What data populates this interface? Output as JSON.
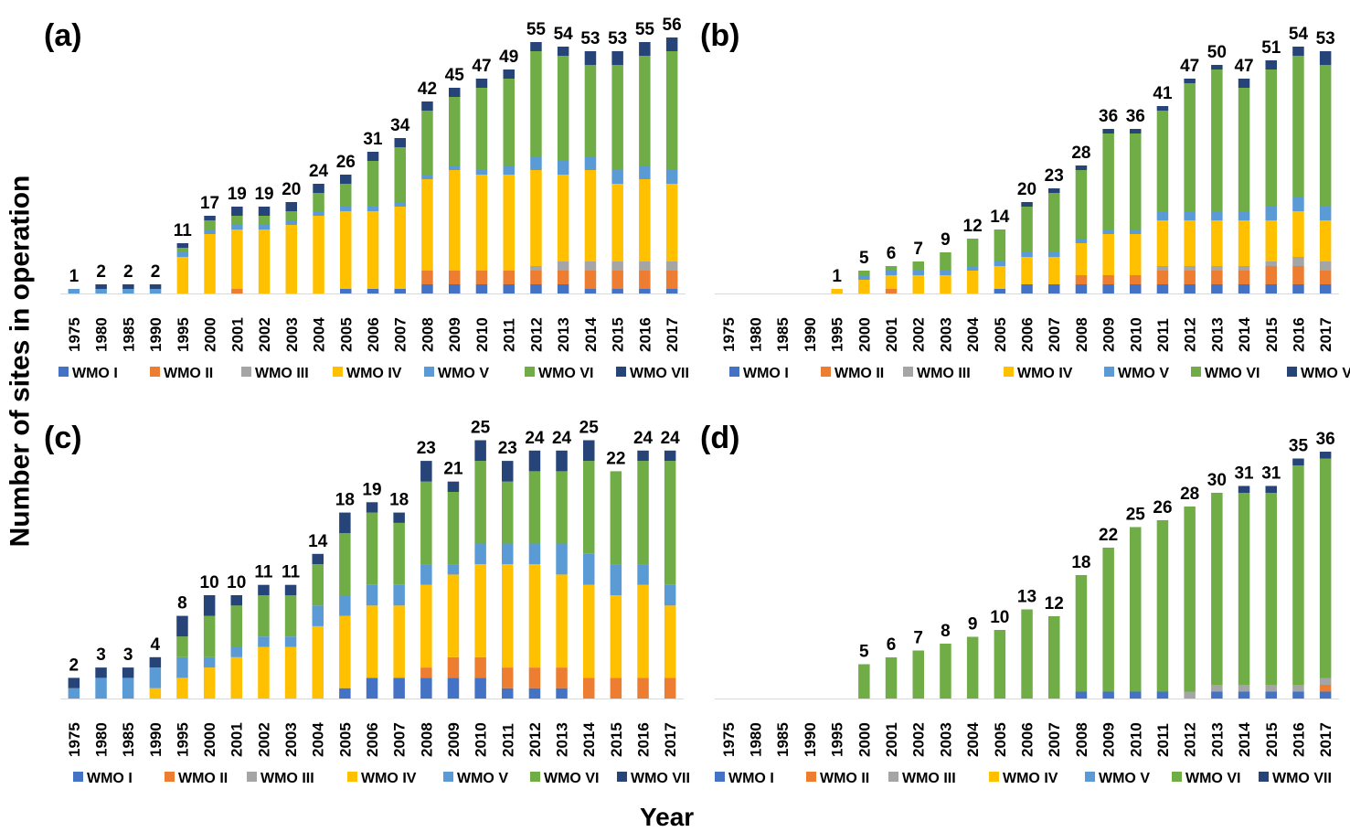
{
  "figure": {
    "ylabel": "Number of sites in operation",
    "xlabel": "Year"
  },
  "legend": {
    "items": [
      {
        "name": "WMO I",
        "color": "#4472C4"
      },
      {
        "name": "WMO II",
        "color": "#ED7D31"
      },
      {
        "name": "WMO III",
        "color": "#A5A5A5"
      },
      {
        "name": "WMO IV",
        "color": "#FFC000"
      },
      {
        "name": "WMO V",
        "color": "#5B9BD5"
      },
      {
        "name": "WMO VI",
        "color": "#70AD47"
      },
      {
        "name": "WMO VII",
        "color": "#264478"
      }
    ],
    "placement": "bottom"
  },
  "chart_data": [
    {
      "type": "bar",
      "stacked": true,
      "panel_label": "(a)",
      "categories": [
        "1975",
        "1980",
        "1985",
        "1990",
        "1995",
        "2000",
        "2001",
        "2002",
        "2003",
        "2004",
        "2005",
        "2006",
        "2007",
        "2008",
        "2009",
        "2010",
        "2011",
        "2012",
        "2013",
        "2014",
        "2015",
        "2016",
        "2017"
      ],
      "totals": [
        1,
        2,
        2,
        2,
        11,
        17,
        19,
        19,
        20,
        24,
        26,
        31,
        34,
        42,
        45,
        47,
        49,
        55,
        54,
        53,
        53,
        55,
        56
      ],
      "series": [
        {
          "name": "WMO I",
          "values": [
            0,
            0,
            0,
            0,
            0,
            0,
            0,
            0,
            0,
            0,
            1,
            1,
            1,
            2,
            2,
            2,
            2,
            2,
            2,
            1,
            1,
            1,
            1
          ]
        },
        {
          "name": "WMO II",
          "values": [
            0,
            0,
            0,
            0,
            0,
            0,
            1,
            0,
            0,
            0,
            0,
            0,
            0,
            3,
            3,
            3,
            3,
            3,
            3,
            4,
            4,
            4,
            4
          ]
        },
        {
          "name": "WMO III",
          "values": [
            0,
            0,
            0,
            0,
            0,
            0,
            0,
            0,
            0,
            0,
            0,
            0,
            0,
            0,
            0,
            0,
            0,
            1,
            2,
            2,
            2,
            2,
            2
          ]
        },
        {
          "name": "WMO IV",
          "values": [
            0,
            0,
            0,
            0,
            8,
            13,
            13,
            14,
            15,
            17,
            17,
            17,
            18,
            20,
            22,
            21,
            21,
            21,
            19,
            20,
            17,
            18,
            17
          ]
        },
        {
          "name": "WMO V",
          "values": [
            1,
            1,
            1,
            1,
            1,
            1,
            1,
            1,
            1,
            1,
            1,
            1,
            1,
            1,
            1,
            1,
            2,
            3,
            3,
            3,
            3,
            3,
            3
          ]
        },
        {
          "name": "WMO VI",
          "values": [
            0,
            0,
            0,
            0,
            1,
            2,
            2,
            2,
            2,
            4,
            5,
            10,
            12,
            14,
            15,
            18,
            19,
            23,
            23,
            20,
            23,
            24,
            26
          ]
        },
        {
          "name": "WMO VII",
          "values": [
            0,
            1,
            1,
            1,
            1,
            1,
            2,
            2,
            2,
            2,
            2,
            2,
            2,
            2,
            2,
            2,
            2,
            2,
            2,
            3,
            3,
            3,
            3
          ]
        }
      ],
      "ylim": [
        0,
        60
      ],
      "grid": false
    },
    {
      "type": "bar",
      "stacked": true,
      "panel_label": "(b)",
      "categories": [
        "1975",
        "1980",
        "1985",
        "1990",
        "1995",
        "2000",
        "2001",
        "2002",
        "2003",
        "2004",
        "2005",
        "2006",
        "2007",
        "2008",
        "2009",
        "2010",
        "2011",
        "2012",
        "2013",
        "2014",
        "2015",
        "2016",
        "2017"
      ],
      "totals": [
        null,
        null,
        null,
        null,
        1,
        5,
        6,
        7,
        9,
        12,
        14,
        20,
        23,
        28,
        36,
        36,
        41,
        47,
        50,
        47,
        51,
        54,
        53
      ],
      "series": [
        {
          "name": "WMO I",
          "values": [
            0,
            0,
            0,
            0,
            0,
            0,
            0,
            0,
            0,
            0,
            1,
            2,
            2,
            2,
            2,
            2,
            2,
            2,
            2,
            2,
            2,
            2,
            2
          ]
        },
        {
          "name": "WMO II",
          "values": [
            0,
            0,
            0,
            0,
            0,
            0,
            1,
            0,
            0,
            0,
            0,
            0,
            0,
            2,
            2,
            2,
            3,
            3,
            3,
            3,
            4,
            4,
            3
          ]
        },
        {
          "name": "WMO III",
          "values": [
            0,
            0,
            0,
            0,
            0,
            0,
            0,
            0,
            0,
            0,
            0,
            0,
            0,
            0,
            0,
            0,
            1,
            1,
            1,
            1,
            1,
            2,
            2
          ]
        },
        {
          "name": "WMO IV",
          "values": [
            0,
            0,
            0,
            0,
            1,
            3,
            3,
            4,
            4,
            5,
            5,
            6,
            6,
            7,
            9,
            9,
            10,
            10,
            10,
            10,
            9,
            10,
            9
          ]
        },
        {
          "name": "WMO V",
          "values": [
            0,
            0,
            0,
            0,
            0,
            1,
            1,
            1,
            1,
            1,
            1,
            1,
            1,
            1,
            1,
            1,
            2,
            2,
            2,
            2,
            3,
            3,
            3
          ]
        },
        {
          "name": "WMO VI",
          "values": [
            0,
            0,
            0,
            0,
            0,
            1,
            1,
            2,
            4,
            6,
            7,
            10,
            13,
            15,
            21,
            21,
            22,
            28,
            31,
            27,
            30,
            31,
            31
          ]
        },
        {
          "name": "WMO VII",
          "values": [
            0,
            0,
            0,
            0,
            0,
            0,
            0,
            0,
            0,
            0,
            0,
            1,
            1,
            1,
            1,
            1,
            1,
            1,
            1,
            2,
            2,
            2,
            3
          ]
        }
      ],
      "ylim": [
        0,
        60
      ],
      "grid": false
    },
    {
      "type": "bar",
      "stacked": true,
      "panel_label": "(c)",
      "categories": [
        "1975",
        "1980",
        "1985",
        "1990",
        "1995",
        "2000",
        "2001",
        "2002",
        "2003",
        "2004",
        "2005",
        "2006",
        "2007",
        "2008",
        "2009",
        "2010",
        "2011",
        "2012",
        "2013",
        "2014",
        "2015",
        "2016",
        "2017"
      ],
      "totals": [
        2,
        3,
        3,
        4,
        8,
        10,
        10,
        11,
        11,
        14,
        18,
        19,
        18,
        23,
        21,
        25,
        23,
        24,
        24,
        25,
        22,
        24,
        24
      ],
      "series": [
        {
          "name": "WMO I",
          "values": [
            0,
            0,
            0,
            0,
            0,
            0,
            0,
            0,
            0,
            0,
            1,
            2,
            2,
            2,
            2,
            2,
            1,
            1,
            1,
            0,
            0,
            0,
            0
          ]
        },
        {
          "name": "WMO II",
          "values": [
            0,
            0,
            0,
            0,
            0,
            0,
            0,
            0,
            0,
            0,
            0,
            0,
            0,
            1,
            2,
            2,
            2,
            2,
            2,
            2,
            2,
            2,
            2
          ]
        },
        {
          "name": "WMO III",
          "values": [
            0,
            0,
            0,
            0,
            0,
            0,
            0,
            0,
            0,
            0,
            0,
            0,
            0,
            0,
            0,
            0,
            0,
            0,
            0,
            0,
            0,
            0,
            0
          ]
        },
        {
          "name": "WMO IV",
          "values": [
            0,
            0,
            0,
            1,
            2,
            3,
            4,
            5,
            5,
            7,
            7,
            7,
            7,
            8,
            8,
            9,
            10,
            10,
            9,
            9,
            8,
            9,
            7
          ]
        },
        {
          "name": "WMO V",
          "values": [
            1,
            2,
            2,
            2,
            2,
            1,
            1,
            1,
            1,
            2,
            2,
            2,
            2,
            2,
            1,
            2,
            2,
            2,
            3,
            3,
            3,
            2,
            2
          ]
        },
        {
          "name": "WMO VI",
          "values": [
            0,
            0,
            0,
            0,
            2,
            4,
            4,
            4,
            4,
            4,
            6,
            7,
            6,
            8,
            7,
            8,
            6,
            7,
            7,
            9,
            9,
            10,
            12
          ]
        },
        {
          "name": "WMO VII",
          "values": [
            1,
            1,
            1,
            1,
            2,
            2,
            1,
            1,
            1,
            1,
            2,
            1,
            1,
            2,
            1,
            2,
            2,
            2,
            2,
            2,
            0,
            1,
            1
          ]
        }
      ],
      "ylim": [
        0,
        27
      ],
      "grid": false
    },
    {
      "type": "bar",
      "stacked": true,
      "panel_label": "(d)",
      "categories": [
        "1975",
        "1980",
        "1985",
        "1990",
        "1995",
        "2000",
        "2001",
        "2002",
        "2003",
        "2004",
        "2005",
        "2006",
        "2007",
        "2008",
        "2009",
        "2010",
        "2011",
        "2012",
        "2013",
        "2014",
        "2015",
        "2016",
        "2017"
      ],
      "totals": [
        null,
        null,
        null,
        null,
        null,
        5,
        6,
        7,
        8,
        9,
        10,
        13,
        12,
        18,
        22,
        25,
        26,
        28,
        30,
        31,
        31,
        35,
        36
      ],
      "series": [
        {
          "name": "WMO I",
          "values": [
            0,
            0,
            0,
            0,
            0,
            0,
            0,
            0,
            0,
            0,
            0,
            0,
            0,
            1,
            1,
            1,
            1,
            0,
            1,
            1,
            1,
            1,
            1
          ]
        },
        {
          "name": "WMO II",
          "values": [
            0,
            0,
            0,
            0,
            0,
            0,
            0,
            0,
            0,
            0,
            0,
            0,
            0,
            0,
            0,
            0,
            0,
            0,
            0,
            0,
            0,
            0,
            1
          ]
        },
        {
          "name": "WMO III",
          "values": [
            0,
            0,
            0,
            0,
            0,
            0,
            0,
            0,
            0,
            0,
            0,
            0,
            0,
            0,
            0,
            0,
            0,
            1,
            1,
            1,
            1,
            1,
            1
          ]
        },
        {
          "name": "WMO IV",
          "values": [
            0,
            0,
            0,
            0,
            0,
            0,
            0,
            0,
            0,
            0,
            0,
            0,
            0,
            0,
            0,
            0,
            0,
            0,
            0,
            0,
            0,
            0,
            0
          ]
        },
        {
          "name": "WMO V",
          "values": [
            0,
            0,
            0,
            0,
            0,
            0,
            0,
            0,
            0,
            0,
            0,
            0,
            0,
            0,
            0,
            0,
            0,
            0,
            0,
            0,
            0,
            0,
            0
          ]
        },
        {
          "name": "WMO VI",
          "values": [
            0,
            0,
            0,
            0,
            0,
            5,
            6,
            7,
            8,
            9,
            10,
            13,
            12,
            17,
            21,
            24,
            25,
            27,
            28,
            28,
            28,
            32,
            32
          ]
        },
        {
          "name": "WMO VII",
          "values": [
            0,
            0,
            0,
            0,
            0,
            0,
            0,
            0,
            0,
            0,
            0,
            0,
            0,
            0,
            0,
            0,
            0,
            0,
            0,
            1,
            1,
            1,
            1
          ]
        }
      ],
      "ylim": [
        0,
        40
      ],
      "grid": false
    }
  ]
}
